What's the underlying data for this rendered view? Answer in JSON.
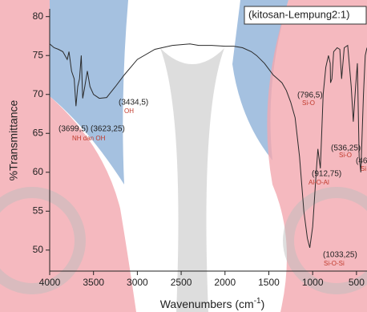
{
  "chart_data": {
    "type": "line",
    "legend_label": "(kitosan-Lempung2:1)",
    "x_label": {
      "text": "Wavenumbers (cm",
      "sup": "-1",
      "end": ")"
    },
    "y_label": "%Transmittance",
    "xlim": [
      4000,
      380
    ],
    "ylim": [
      47.3,
      81
    ],
    "xticks": [
      4000,
      3500,
      3000,
      2500,
      2000,
      1500,
      1000,
      500
    ],
    "yticks": [
      50,
      55,
      60,
      65,
      70,
      75,
      80
    ],
    "reverse_x": true,
    "series": [
      {
        "color": "#2b2b2b",
        "x": [
          4000,
          3950,
          3900,
          3850,
          3800,
          3780,
          3750,
          3720,
          3700,
          3680,
          3660,
          3640,
          3623,
          3600,
          3570,
          3540,
          3500,
          3434,
          3350,
          3250,
          3150,
          3000,
          2800,
          2600,
          2400,
          2300,
          2150,
          2000,
          1900,
          1800,
          1700,
          1640,
          1550,
          1450,
          1400,
          1350,
          1300,
          1250,
          1200,
          1150,
          1100,
          1060,
          1033,
          1000,
          960,
          940,
          912,
          880,
          850,
          820,
          800,
          796,
          780,
          760,
          720,
          690,
          670,
          640,
          600,
          560,
          536,
          510,
          490,
          470,
          450,
          420,
          400,
          380
        ],
        "values": [
          76.5,
          76,
          75.8,
          75.5,
          74.5,
          75.5,
          73,
          72,
          68.5,
          71,
          72,
          75,
          69.5,
          71,
          73,
          71,
          70,
          69.5,
          69.6,
          71,
          72.5,
          74.5,
          75.8,
          76.3,
          76.5,
          76.3,
          76.3,
          76.2,
          76.2,
          76,
          75.5,
          75,
          74,
          72.5,
          72,
          71.5,
          70.5,
          69,
          67,
          62,
          55,
          51.5,
          50.3,
          53,
          60,
          63,
          60.5,
          70,
          73.5,
          75,
          74,
          71.5,
          72,
          75.5,
          76,
          75.8,
          72,
          76,
          76.3,
          71,
          66.5,
          71,
          74,
          62,
          60,
          70,
          75,
          76
        ]
      }
    ],
    "annotations": [
      {
        "text": "(3434,5)",
        "label": "OH"
      },
      {
        "text": "(3699,5) (3623,25)",
        "label": "NH dan OH"
      },
      {
        "text": "(796,5)",
        "label": "Si-O"
      },
      {
        "text": "(536,25)",
        "label": "Si-O"
      },
      {
        "text": "(912,75)",
        "label": "Al-O-Al"
      },
      {
        "text": "(1033,25)",
        "label": "Si-O-Si"
      },
      {
        "text": "(46",
        "label": "Si"
      }
    ]
  }
}
